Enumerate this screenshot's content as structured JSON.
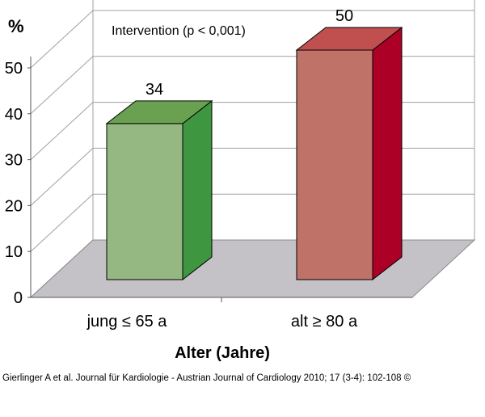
{
  "chart_data": {
    "type": "bar",
    "style": "3d",
    "ylabel": "%",
    "xlabel": "Alter (Jahre)",
    "annotation": "Intervention (p < 0,001)",
    "categories": [
      "jung ≤ 65 a",
      "alt ≥ 80 a"
    ],
    "values": [
      34,
      50
    ],
    "data_labels": [
      "34",
      "50"
    ],
    "ylim": [
      0,
      50
    ],
    "yticks": [
      "0",
      "10",
      "20",
      "30",
      "40",
      "50"
    ],
    "grid": true,
    "colors": {
      "bar1_front": "#95b882",
      "bar1_side": "#3f9640",
      "bar1_top": "#6aa150",
      "bar2_front": "#bf7267",
      "bar2_side": "#ac0027",
      "bar2_top": "#c0504f",
      "floor": "#c4c2c6",
      "grid": "#a0a0a0"
    }
  },
  "footer": {
    "citation": "Gierlinger A et al. Journal für Kardiologie - Austrian Journal of Cardiology 2010; 17 (3-4): 102-108 ©"
  }
}
